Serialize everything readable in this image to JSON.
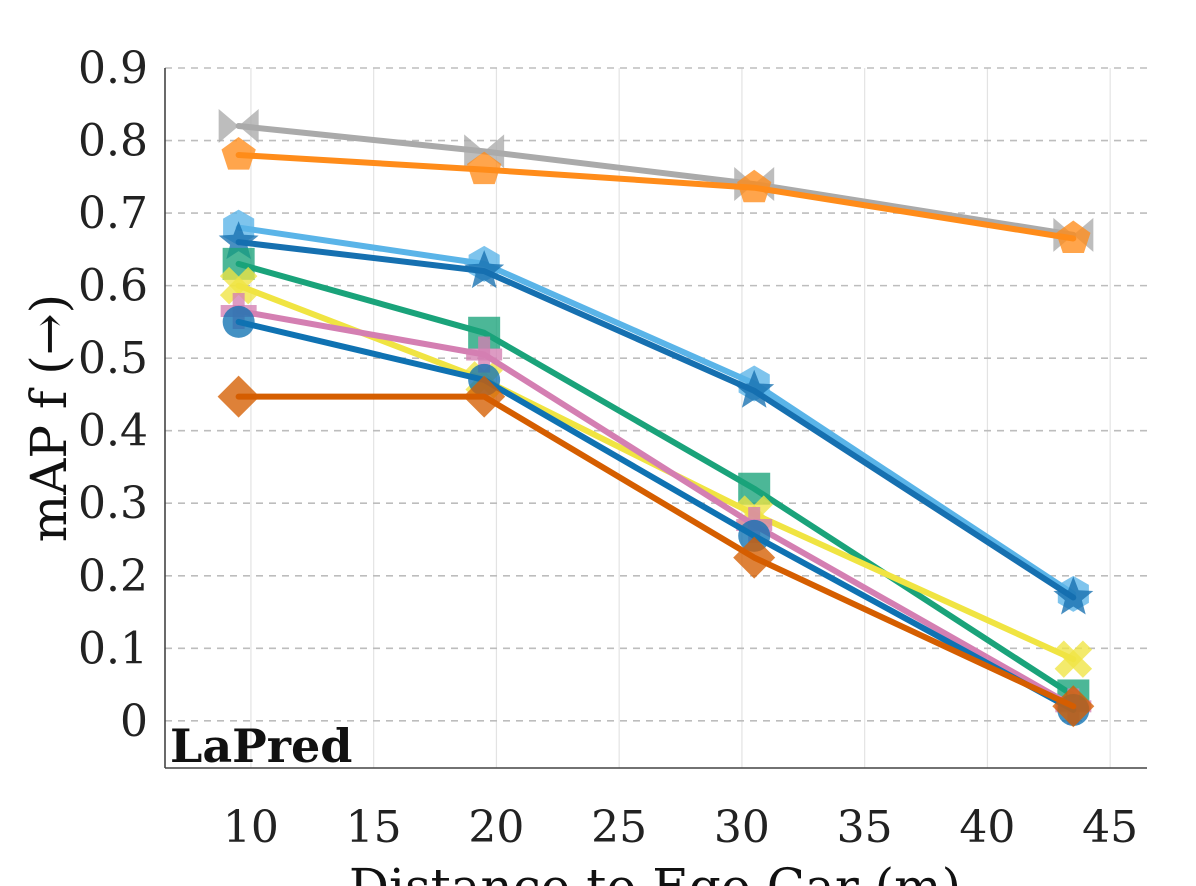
{
  "chart_data": {
    "type": "line",
    "title": "",
    "annotation": "LaPred",
    "xlabel": "Distance to Ego Car (m)",
    "ylabel": "mAP f (→)",
    "xlim": [
      6.5,
      46.5
    ],
    "ylim": [
      -0.065,
      0.9
    ],
    "xticks": [
      10,
      15,
      20,
      25,
      30,
      35,
      40,
      45
    ],
    "yticks": [
      0,
      0.1,
      0.2,
      0.3,
      0.4,
      0.5,
      0.6,
      0.7,
      0.8,
      0.9
    ],
    "ytick_labels": [
      "0",
      "0.1",
      "0.2",
      "0.3",
      "0.4",
      "0.5",
      "0.6",
      "0.7",
      "0.8",
      "0.9"
    ],
    "grid": true,
    "x": [
      9.5,
      19.5,
      30.5,
      43.5
    ],
    "series": [
      {
        "name": "gray-x",
        "color": "#aaaaaa",
        "marker": "bowtie",
        "values": [
          0.82,
          0.785,
          0.74,
          0.67
        ]
      },
      {
        "name": "orange-pentagon",
        "color": "#ff8c1a",
        "marker": "pentagon",
        "values": [
          0.78,
          0.76,
          0.735,
          0.665
        ]
      },
      {
        "name": "skyblue-hexagon",
        "color": "#5ab4e8",
        "marker": "hexagon",
        "values": [
          0.68,
          0.63,
          0.465,
          0.175
        ]
      },
      {
        "name": "blue-star",
        "color": "#1670b0",
        "marker": "star",
        "values": [
          0.66,
          0.62,
          0.455,
          0.17
        ]
      },
      {
        "name": "green-square",
        "color": "#1aa37a",
        "marker": "square",
        "values": [
          0.63,
          0.535,
          0.32,
          0.035
        ]
      },
      {
        "name": "yellow-x",
        "color": "#f0e442",
        "marker": "xmark",
        "values": [
          0.6,
          0.47,
          0.285,
          0.085
        ]
      },
      {
        "name": "pink-plus",
        "color": "#d47fb2",
        "marker": "plus",
        "values": [
          0.565,
          0.505,
          0.27,
          0.02
        ]
      },
      {
        "name": "blue-circle",
        "color": "#0f72b2",
        "marker": "circle",
        "values": [
          0.55,
          0.47,
          0.255,
          0.015
        ]
      },
      {
        "name": "vermilion-diamond",
        "color": "#d55e00",
        "marker": "diamond",
        "values": [
          0.447,
          0.447,
          0.225,
          0.02
        ]
      }
    ]
  }
}
